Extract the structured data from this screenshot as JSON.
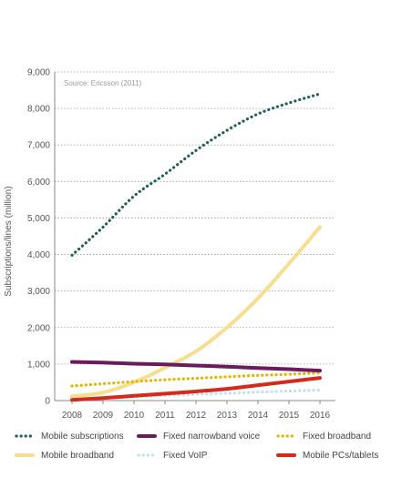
{
  "chart_data": {
    "type": "line",
    "source_note": "Source: Ericsson (2011)",
    "ylabel": "Subscriptions/lines (million)",
    "xlabel": "",
    "x": [
      2008,
      2009,
      2010,
      2011,
      2012,
      2013,
      2014,
      2015,
      2016
    ],
    "ylim": [
      0,
      9000
    ],
    "yticks": [
      0,
      1000,
      2000,
      3000,
      4000,
      5000,
      6000,
      7000,
      8000,
      9000
    ],
    "ytick_labels": [
      "0",
      "1,000",
      "2,000",
      "3,000",
      "4,000",
      "5,000",
      "6,000",
      "7,000",
      "8,000",
      "9,000"
    ],
    "grid": true,
    "legend_position": "bottom",
    "series": [
      {
        "name": "Mobile subscriptions",
        "values": [
          3980,
          4750,
          5600,
          6200,
          6850,
          7400,
          7850,
          8150,
          8400
        ],
        "color": "#1f5f58",
        "style": "dotted"
      },
      {
        "name": "Fixed narrowband voice",
        "values": [
          1060,
          1040,
          1010,
          990,
          960,
          930,
          890,
          860,
          820
        ],
        "color": "#6b1a5c",
        "style": "solid"
      },
      {
        "name": "Fixed broadband",
        "values": [
          400,
          460,
          520,
          570,
          610,
          650,
          690,
          720,
          760
        ],
        "color": "#e6b400",
        "style": "dotted"
      },
      {
        "name": "Mobile broadband",
        "values": [
          120,
          220,
          500,
          900,
          1350,
          2000,
          2800,
          3750,
          4750
        ],
        "color": "#f7de8f",
        "style": "solid"
      },
      {
        "name": "Fixed VoIP",
        "values": [
          20,
          60,
          100,
          140,
          170,
          200,
          230,
          260,
          290
        ],
        "color": "#bfe0f0",
        "style": "dotted"
      },
      {
        "name": "Mobile PCs/tablets",
        "values": [
          20,
          70,
          130,
          190,
          250,
          320,
          420,
          520,
          620
        ],
        "color": "#d42a1c",
        "style": "solid"
      }
    ]
  }
}
